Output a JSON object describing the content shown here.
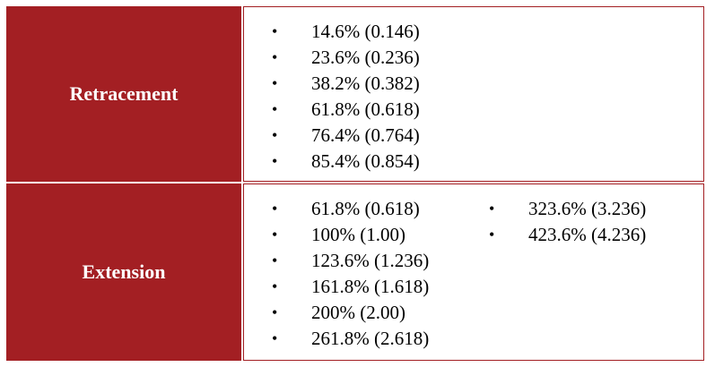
{
  "rows": [
    {
      "label": "Retracement",
      "columns": [
        [
          "14.6% (0.146)",
          "23.6% (0.236)",
          "38.2% (0.382)",
          "61.8% (0.618)",
          "76.4% (0.764)",
          "85.4% (0.854)"
        ]
      ]
    },
    {
      "label": "Extension",
      "columns": [
        [
          "61.8% (0.618)",
          "100% (1.00)",
          "123.6% (1.236)",
          "161.8% (1.618)",
          "200% (2.00)",
          "261.8% (2.618)"
        ],
        [
          "323.6% (3.236)",
          "423.6% (4.236)"
        ]
      ]
    }
  ],
  "bullet_char": "•",
  "colors": {
    "header_bg": "#a31f23",
    "header_text": "#ffffff",
    "border": "#a31f23",
    "text": "#000000"
  }
}
